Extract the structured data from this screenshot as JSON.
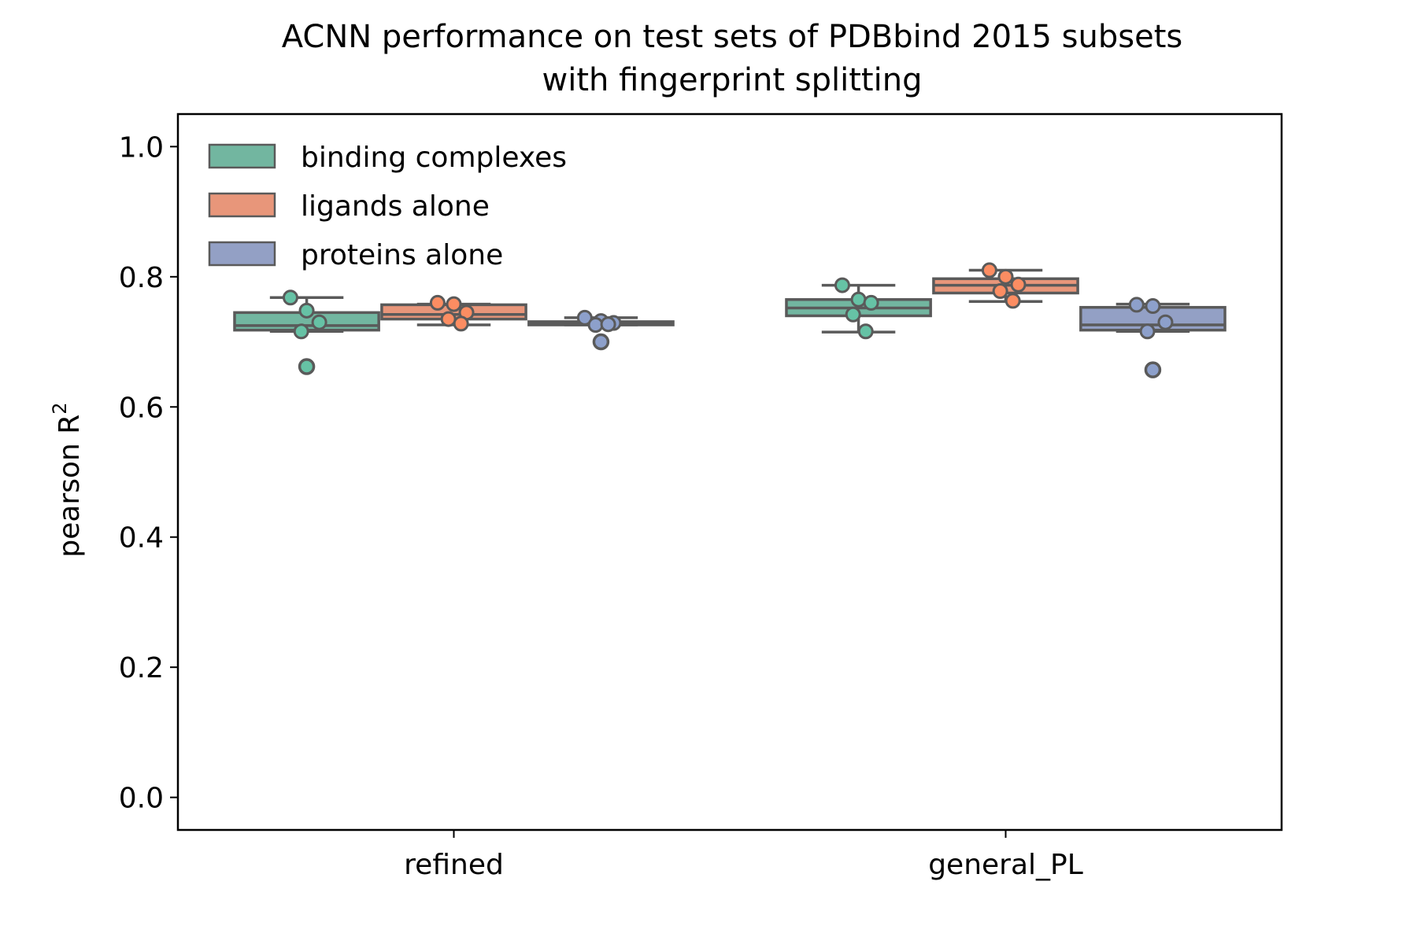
{
  "chart_data": {
    "type": "box",
    "title_line1": "ACNN performance on test sets of PDBbind 2015 subsets",
    "title_line2": "with fingerprint splitting",
    "ylabel": "pearson R",
    "ylabel_sup": "2",
    "xlabel": "",
    "ylim": [
      -0.05,
      1.05
    ],
    "yticks": [
      "0.0",
      "0.2",
      "0.4",
      "0.6",
      "0.8",
      "1.0"
    ],
    "ytick_values": [
      0.0,
      0.2,
      0.4,
      0.6,
      0.8,
      1.0
    ],
    "categories": [
      "refined",
      "general_PL"
    ],
    "legend_position": "upper-left",
    "grid": false,
    "series": [
      {
        "name": "binding complexes",
        "color": "#72b6a0",
        "point_color": "#66c2a5",
        "boxes": [
          {
            "whislo": 0.716,
            "q1": 0.718,
            "med": 0.725,
            "q3": 0.745,
            "whishi": 0.768,
            "points": [
              0.768,
              0.748,
              0.73,
              0.716
            ],
            "fliers": [
              0.662
            ]
          },
          {
            "whislo": 0.715,
            "q1": 0.74,
            "med": 0.752,
            "q3": 0.765,
            "whishi": 0.787,
            "points": [
              0.787,
              0.765,
              0.76,
              0.742,
              0.716
            ],
            "fliers": []
          }
        ]
      },
      {
        "name": "ligands alone",
        "color": "#e8967a",
        "point_color": "#fc8d62",
        "boxes": [
          {
            "whislo": 0.726,
            "q1": 0.735,
            "med": 0.742,
            "q3": 0.757,
            "whishi": 0.758,
            "points": [
              0.76,
              0.758,
              0.745,
              0.735,
              0.728
            ],
            "fliers": []
          },
          {
            "whislo": 0.762,
            "q1": 0.775,
            "med": 0.787,
            "q3": 0.797,
            "whishi": 0.81,
            "points": [
              0.81,
              0.8,
              0.788,
              0.778,
              0.763
            ],
            "fliers": []
          }
        ]
      },
      {
        "name": "proteins alone",
        "color": "#93a0c5",
        "point_color": "#8da0cb",
        "boxes": [
          {
            "whislo": 0.726,
            "q1": 0.726,
            "med": 0.728,
            "q3": 0.731,
            "whishi": 0.737,
            "points": [
              0.737,
              0.732,
              0.729,
              0.726,
              0.727
            ],
            "fliers": [
              0.7
            ]
          },
          {
            "whislo": 0.716,
            "q1": 0.718,
            "med": 0.726,
            "q3": 0.753,
            "whishi": 0.758,
            "points": [
              0.757,
              0.755,
              0.73,
              0.716
            ],
            "fliers": [
              0.657
            ]
          }
        ]
      }
    ]
  }
}
